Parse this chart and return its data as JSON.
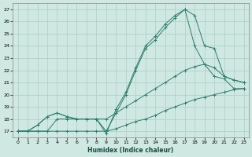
{
  "xlabel": "Humidex (Indice chaleur)",
  "xlim": [
    -0.5,
    23.5
  ],
  "ylim": [
    16.5,
    27.5
  ],
  "yticks": [
    17,
    18,
    19,
    20,
    21,
    22,
    23,
    24,
    25,
    26,
    27
  ],
  "xticks": [
    0,
    1,
    2,
    3,
    4,
    5,
    6,
    7,
    8,
    9,
    10,
    11,
    12,
    13,
    14,
    15,
    16,
    17,
    18,
    19,
    20,
    21,
    22,
    23
  ],
  "bg_color": "#cfe8e2",
  "line_color": "#2e7d6e",
  "grid_color": "#aacfc5",
  "lines": [
    {
      "x": [
        0,
        1,
        2,
        3,
        4,
        5,
        6,
        7,
        8,
        9,
        10,
        11,
        12,
        13,
        14,
        15,
        16,
        17,
        18,
        19,
        20,
        21,
        22,
        23
      ],
      "y": [
        17,
        17,
        17,
        17,
        17,
        17,
        17,
        17,
        17,
        17,
        17.2,
        17.5,
        17.8,
        18.0,
        18.3,
        18.7,
        19.0,
        19.3,
        19.6,
        19.8,
        20.0,
        20.2,
        20.4,
        20.5
      ]
    },
    {
      "x": [
        0,
        1,
        2,
        3,
        4,
        5,
        6,
        7,
        8,
        9,
        10,
        11,
        12,
        13,
        14,
        15,
        16,
        17,
        18,
        19,
        20,
        21,
        22,
        23
      ],
      "y": [
        17,
        17,
        17,
        17,
        18,
        18,
        18,
        18,
        18,
        18,
        18.5,
        19.0,
        19.5,
        20.0,
        20.5,
        21.0,
        21.5,
        22.0,
        22.3,
        22.5,
        22.2,
        21.5,
        21.2,
        21.0
      ]
    },
    {
      "x": [
        0,
        1,
        2,
        3,
        4,
        5,
        6,
        7,
        8,
        9,
        10,
        11,
        12,
        13,
        14,
        15,
        16,
        17,
        18,
        19,
        20,
        21,
        22,
        23
      ],
      "y": [
        17,
        17,
        17.5,
        18.2,
        18.5,
        18.2,
        18.0,
        18.0,
        18.0,
        17.0,
        18.5,
        20.0,
        22.0,
        23.8,
        24.5,
        25.5,
        26.3,
        27.0,
        26.5,
        24.0,
        23.8,
        21.5,
        21.2,
        21.0
      ]
    },
    {
      "x": [
        0,
        1,
        2,
        3,
        4,
        5,
        6,
        7,
        8,
        9,
        10,
        11,
        12,
        13,
        14,
        15,
        16,
        17,
        18,
        19,
        20,
        21,
        22,
        23
      ],
      "y": [
        17,
        17,
        17.5,
        18.2,
        18.5,
        18.2,
        18.0,
        18.0,
        18.0,
        16.8,
        18.8,
        20.2,
        22.2,
        24.0,
        24.8,
        25.8,
        26.5,
        27.0,
        24.0,
        22.5,
        21.5,
        21.3,
        20.5,
        20.5
      ]
    }
  ],
  "figsize": [
    3.2,
    2.0
  ],
  "dpi": 100
}
